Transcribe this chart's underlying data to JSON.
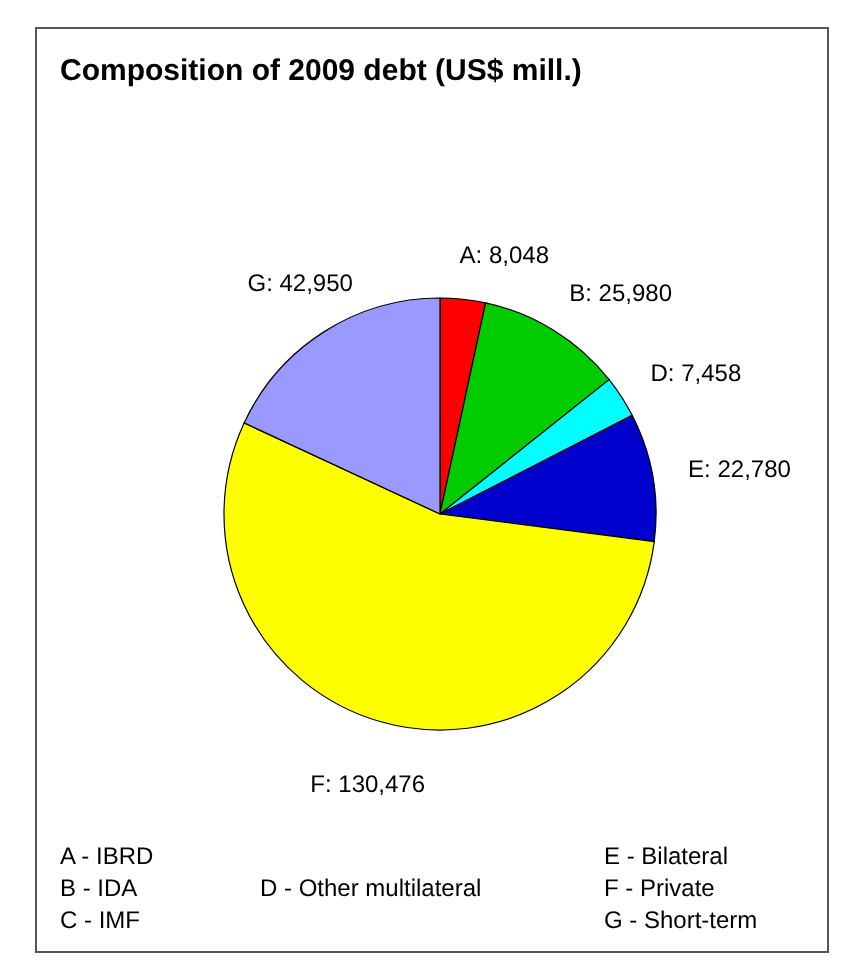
{
  "chart_data": {
    "type": "pie",
    "title": "Composition of 2009 debt (US$ mill.)",
    "categories": [
      "A",
      "B",
      "D",
      "E",
      "F",
      "G"
    ],
    "values": [
      8048,
      25980,
      7458,
      22780,
      130476,
      42950
    ],
    "value_labels": [
      "8,048",
      "25,980",
      "7,458",
      "22,780",
      "130,476",
      "42,950"
    ],
    "colors": [
      "#ff0000",
      "#00cc00",
      "#00ffff",
      "#0000cc",
      "#ffff00",
      "#9999ff"
    ],
    "annotations": [
      "A - IBRD",
      "B - IDA",
      "C - IMF",
      "D - Other multilateral",
      "E - Bilateral",
      "F - Private",
      "G - Short-term"
    ]
  }
}
